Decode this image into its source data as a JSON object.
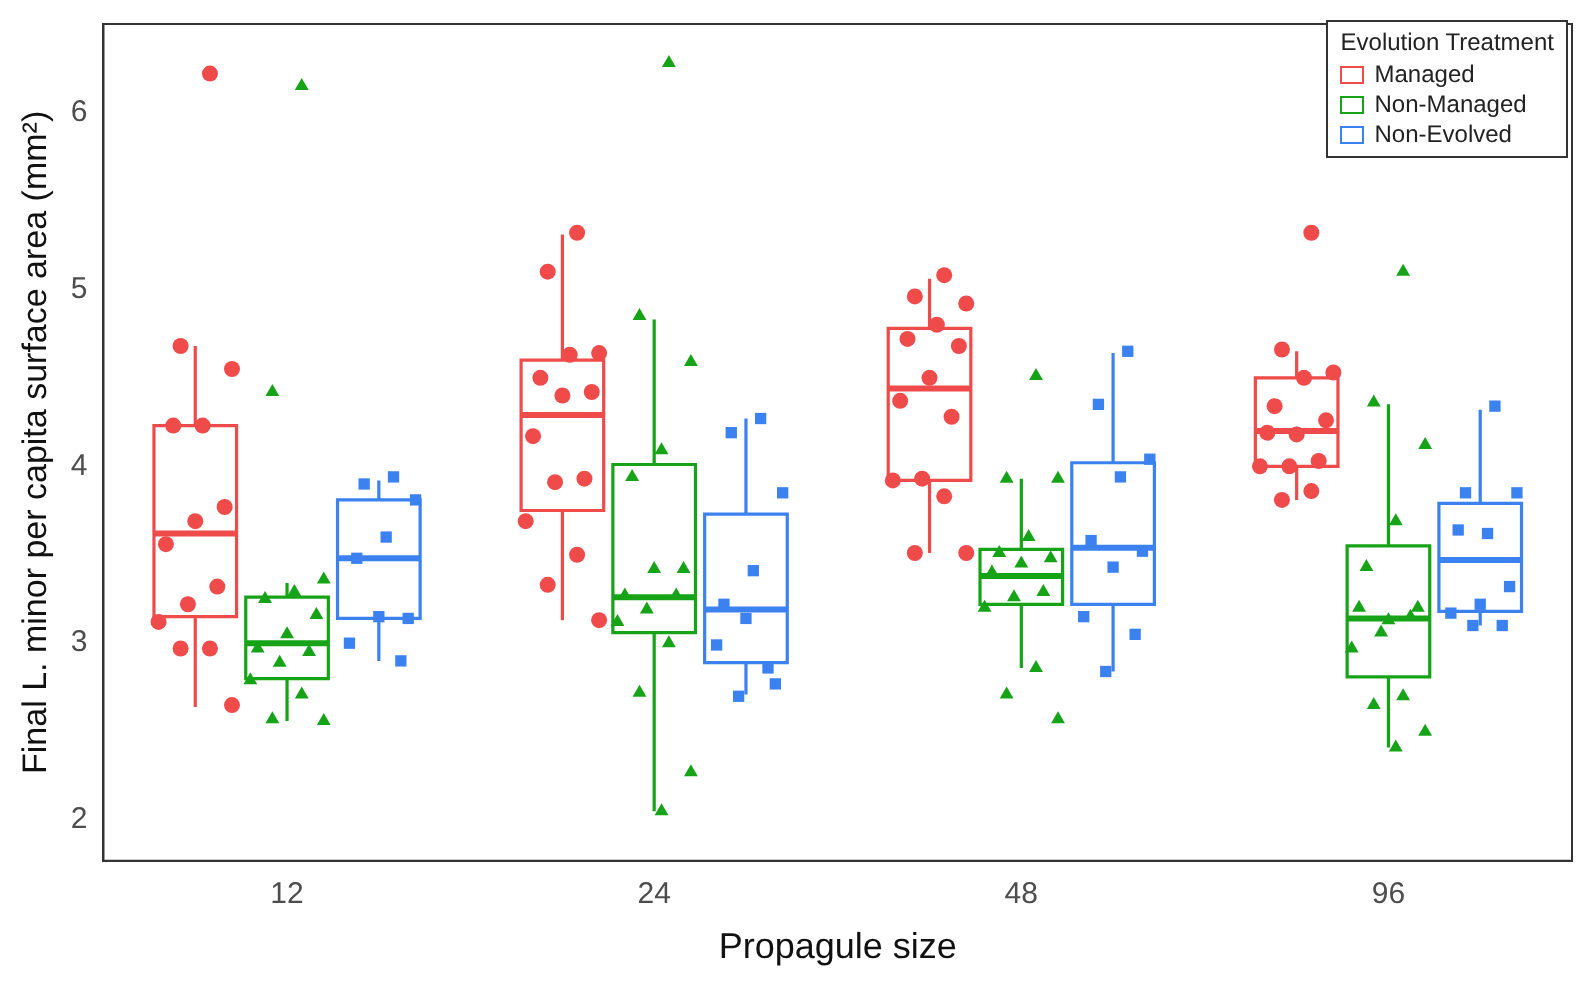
{
  "chart_data": {
    "type": "box",
    "xlabel": "Propagule size",
    "ylabel": "Final L. minor per capita surface area (mm²)",
    "legend_title": "Evolution Treatment",
    "legend": "top right",
    "categories": [
      "12",
      "24",
      "48",
      "96"
    ],
    "ylim": [
      1.77,
      6.5
    ],
    "yticks": [
      2,
      3,
      4,
      5,
      6
    ],
    "series": [
      {
        "name": "Managed",
        "color": "#f04b4b",
        "boxes": [
          {
            "low": 2.64,
            "q1": 3.15,
            "median": 3.62,
            "q3": 4.23,
            "high": 4.68
          },
          {
            "low": 3.13,
            "q1": 3.75,
            "median": 4.29,
            "q3": 4.6,
            "high": 5.31
          },
          {
            "low": 3.51,
            "q1": 3.92,
            "median": 4.44,
            "q3": 4.78,
            "high": 5.06
          },
          {
            "low": 3.81,
            "q1": 4.0,
            "median": 4.2,
            "q3": 4.5,
            "high": 4.65
          }
        ]
      },
      {
        "name": "Non-Managed",
        "color": "#17a317",
        "boxes": [
          {
            "low": 2.56,
            "q1": 2.8,
            "median": 3.0,
            "q3": 3.26,
            "high": 3.34
          },
          {
            "low": 2.05,
            "q1": 3.06,
            "median": 3.26,
            "q3": 4.01,
            "high": 4.83
          },
          {
            "low": 2.86,
            "q1": 3.22,
            "median": 3.38,
            "q3": 3.53,
            "high": 3.93
          },
          {
            "low": 2.41,
            "q1": 2.81,
            "median": 3.14,
            "q3": 3.55,
            "high": 4.35
          }
        ]
      },
      {
        "name": "Non-Evolved",
        "color": "#3b82f0",
        "boxes": [
          {
            "low": 2.9,
            "q1": 3.14,
            "median": 3.48,
            "q3": 3.81,
            "high": 3.92
          },
          {
            "low": 2.71,
            "q1": 2.89,
            "median": 3.19,
            "q3": 3.73,
            "high": 4.27
          },
          {
            "low": 2.84,
            "q1": 3.22,
            "median": 3.54,
            "q3": 4.02,
            "high": 4.64
          },
          {
            "low": 3.1,
            "q1": 3.18,
            "median": 3.47,
            "q3": 3.79,
            "high": 4.32
          }
        ]
      },
      {
        "type": "scatter",
        "color": "#f04b4b",
        "marker": "circle",
        "x": [
          "12",
          "12",
          "12",
          "12",
          "12",
          "12",
          "12",
          "12",
          "12",
          "12",
          "12",
          "12",
          "12",
          "12",
          "24",
          "24",
          "24",
          "24",
          "24",
          "24",
          "24",
          "24",
          "24",
          "24",
          "24",
          "24",
          "24",
          "24",
          "48",
          "48",
          "48",
          "48",
          "48",
          "48",
          "48",
          "48",
          "48",
          "48",
          "48",
          "48",
          "48",
          "48",
          "96",
          "96",
          "96",
          "96",
          "96",
          "96",
          "96",
          "96",
          "96",
          "96",
          "96",
          "96",
          "96"
        ],
        "values": [
          6.22,
          4.68,
          4.55,
          4.23,
          4.23,
          3.77,
          3.69,
          3.56,
          3.32,
          3.22,
          3.12,
          2.97,
          2.97,
          2.65,
          5.32,
          5.1,
          4.64,
          4.63,
          4.5,
          4.42,
          4.4,
          4.17,
          3.93,
          3.91,
          3.69,
          3.5,
          3.33,
          3.13,
          5.08,
          4.96,
          4.92,
          4.8,
          4.72,
          4.68,
          4.5,
          4.37,
          4.28,
          3.93,
          3.92,
          3.83,
          3.51,
          3.51,
          5.32,
          4.66,
          4.53,
          4.5,
          4.34,
          4.26,
          4.18,
          4.19,
          4.03,
          4.0,
          4.0,
          3.86,
          3.81
        ]
      },
      {
        "type": "scatter",
        "color": "#17a317",
        "marker": "triangle",
        "x": [
          "12",
          "12",
          "12",
          "12",
          "12",
          "12",
          "12",
          "12",
          "12",
          "12",
          "12",
          "12",
          "12",
          "12",
          "24",
          "24",
          "24",
          "24",
          "24",
          "24",
          "24",
          "24",
          "24",
          "24",
          "24",
          "24",
          "24",
          "24",
          "24",
          "48",
          "48",
          "48",
          "48",
          "48",
          "48",
          "48",
          "48",
          "48",
          "48",
          "48",
          "48",
          "48",
          "48",
          "96",
          "96",
          "96",
          "96",
          "96",
          "96",
          "96",
          "96",
          "96",
          "96",
          "96",
          "96",
          "96",
          "96",
          "96"
        ],
        "values": [
          6.15,
          4.42,
          3.36,
          3.29,
          3.25,
          3.16,
          3.05,
          2.97,
          2.95,
          2.89,
          2.79,
          2.71,
          2.57,
          2.56,
          6.28,
          4.85,
          4.59,
          4.09,
          3.94,
          3.42,
          3.42,
          3.27,
          3.27,
          3.19,
          3.12,
          3.0,
          2.72,
          2.27,
          2.05,
          4.51,
          3.93,
          3.93,
          3.6,
          3.51,
          3.48,
          3.45,
          3.4,
          3.29,
          3.26,
          3.2,
          2.86,
          2.71,
          2.57,
          5.1,
          4.36,
          4.12,
          3.69,
          3.43,
          3.2,
          3.13,
          3.2,
          3.15,
          3.06,
          2.97,
          2.7,
          2.65,
          2.5,
          2.41
        ]
      },
      {
        "type": "scatter",
        "color": "#3b82f0",
        "marker": "square",
        "x": [
          "12",
          "12",
          "12",
          "12",
          "12",
          "12",
          "12",
          "12",
          "12",
          "24",
          "24",
          "24",
          "24",
          "24",
          "24",
          "24",
          "24",
          "24",
          "24",
          "48",
          "48",
          "48",
          "48",
          "48",
          "48",
          "48",
          "48",
          "48",
          "48",
          "96",
          "96",
          "96",
          "96",
          "96",
          "96",
          "96",
          "96",
          "96",
          "96"
        ],
        "values": [
          3.94,
          3.9,
          3.81,
          3.6,
          3.48,
          3.14,
          3.15,
          3.0,
          2.9,
          4.27,
          4.19,
          3.85,
          3.41,
          3.22,
          2.77,
          3.14,
          2.99,
          2.86,
          2.7,
          4.65,
          4.35,
          4.04,
          3.94,
          3.58,
          3.52,
          3.43,
          3.15,
          3.05,
          2.84,
          4.34,
          3.85,
          3.85,
          3.62,
          3.64,
          3.32,
          3.22,
          3.17,
          3.1,
          3.1
        ]
      }
    ]
  }
}
